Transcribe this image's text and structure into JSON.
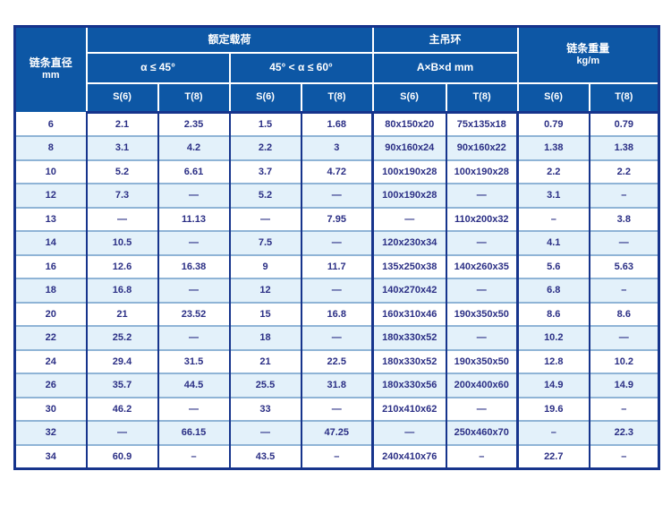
{
  "colors": {
    "header_bg": "#0d57a5",
    "border_navy": "#16348c",
    "row_stripe": "#e3f1fa",
    "row_line": "#8fb4d6",
    "cell_text": "#2b2f85",
    "page_bg": "#ffffff"
  },
  "table": {
    "header": {
      "diameter_title": "链条直径",
      "diameter_unit": "mm",
      "load_group": "额定载荷",
      "ring_group": "主吊环",
      "weight_title": "链条重量",
      "weight_unit": "kg/m",
      "angle1": "α ≤ 45°",
      "angle2": "45° < α ≤ 60°",
      "ring_dims": "A×B×d mm",
      "grade_s": "S(6)",
      "grade_t": "T(8)"
    },
    "rows": [
      [
        "6",
        "2.1",
        "2.35",
        "1.5",
        "1.68",
        "80x150x20",
        "75x135x18",
        "0.79",
        "0.79"
      ],
      [
        "8",
        "3.1",
        "4.2",
        "2.2",
        "3",
        "90x160x24",
        "90x160x22",
        "1.38",
        "1.38"
      ],
      [
        "10",
        "5.2",
        "6.61",
        "3.7",
        "4.72",
        "100x190x28",
        "100x190x28",
        "2.2",
        "2.2"
      ],
      [
        "12",
        "7.3",
        "—",
        "5.2",
        "—",
        "100x190x28",
        "—",
        "3.1",
        "–"
      ],
      [
        "13",
        "—",
        "11.13",
        "—",
        "7.95",
        "—",
        "110x200x32",
        "–",
        "3.8"
      ],
      [
        "14",
        "10.5",
        "—",
        "7.5",
        "—",
        "120x230x34",
        "—",
        "4.1",
        "—"
      ],
      [
        "16",
        "12.6",
        "16.38",
        "9",
        "11.7",
        "135x250x38",
        "140x260x35",
        "5.6",
        "5.63"
      ],
      [
        "18",
        "16.8",
        "—",
        "12",
        "—",
        "140x270x42",
        "—",
        "6.8",
        "–"
      ],
      [
        "20",
        "21",
        "23.52",
        "15",
        "16.8",
        "160x310x46",
        "190x350x50",
        "8.6",
        "8.6"
      ],
      [
        "22",
        "25.2",
        "—",
        "18",
        "—",
        "180x330x52",
        "—",
        "10.2",
        "—"
      ],
      [
        "24",
        "29.4",
        "31.5",
        "21",
        "22.5",
        "180x330x52",
        "190x350x50",
        "12.8",
        "10.2"
      ],
      [
        "26",
        "35.7",
        "44.5",
        "25.5",
        "31.8",
        "180x330x56",
        "200x400x60",
        "14.9",
        "14.9"
      ],
      [
        "30",
        "46.2",
        "—",
        "33",
        "—",
        "210x410x62",
        "—",
        "19.6",
        "–"
      ],
      [
        "32",
        "—",
        "66.15",
        "—",
        "47.25",
        "—",
        "250x460x70",
        "–",
        "22.3"
      ],
      [
        "34",
        "60.9",
        "–",
        "43.5",
        "–",
        "240x410x76",
        "–",
        "22.7",
        "–"
      ]
    ]
  }
}
